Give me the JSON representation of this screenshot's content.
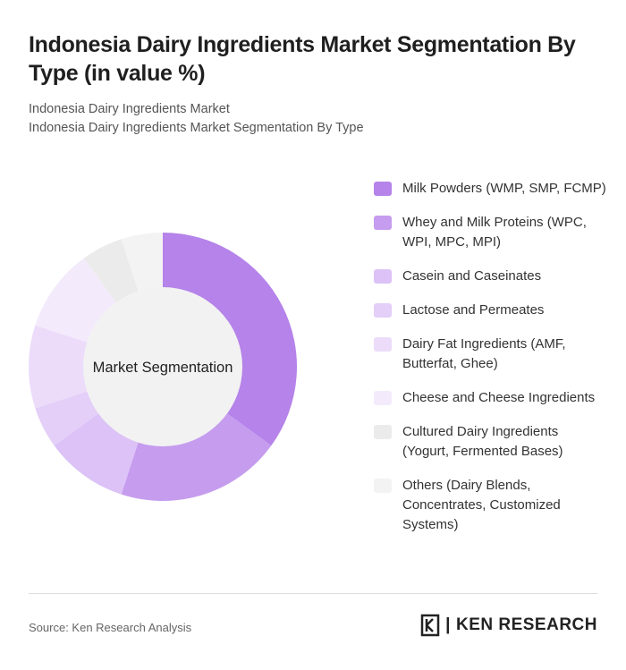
{
  "title": "Indonesia Dairy Ingredients Market Segmentation By Type (in value %)",
  "subtitle1": "Indonesia Dairy Ingredients Market",
  "subtitle2": "Indonesia Dairy Ingredients Market Segmentation By Type",
  "source": "Source: Ken Research Analysis",
  "logo_text": "KEN RESEARCH",
  "chart_data": {
    "type": "pie",
    "donut": true,
    "center_label": "Market Segmentation",
    "legend_position": "right",
    "categories": [
      "Milk Powders (WMP, SMP, FCMP)",
      "Whey and Milk Proteins (WPC, WPI, MPC, MPI)",
      "Casein and Caseinates",
      "Lactose and Permeates",
      "Dairy Fat Ingredients (AMF, Butterfat, Ghee)",
      "Cheese and Cheese Ingredients",
      "Cultured Dairy Ingredients (Yogurt, Fermented Bases)",
      "Others (Dairy Blends, Concentrates, Customized Systems)"
    ],
    "values": [
      35,
      20,
      10,
      5,
      10,
      10,
      5,
      5
    ],
    "colors": [
      "#b583e9",
      "#c59cee",
      "#dcc2f6",
      "#e4cff8",
      "#ecdcfa",
      "#f3ebfc",
      "#ebebeb",
      "#f3f3f3"
    ]
  }
}
